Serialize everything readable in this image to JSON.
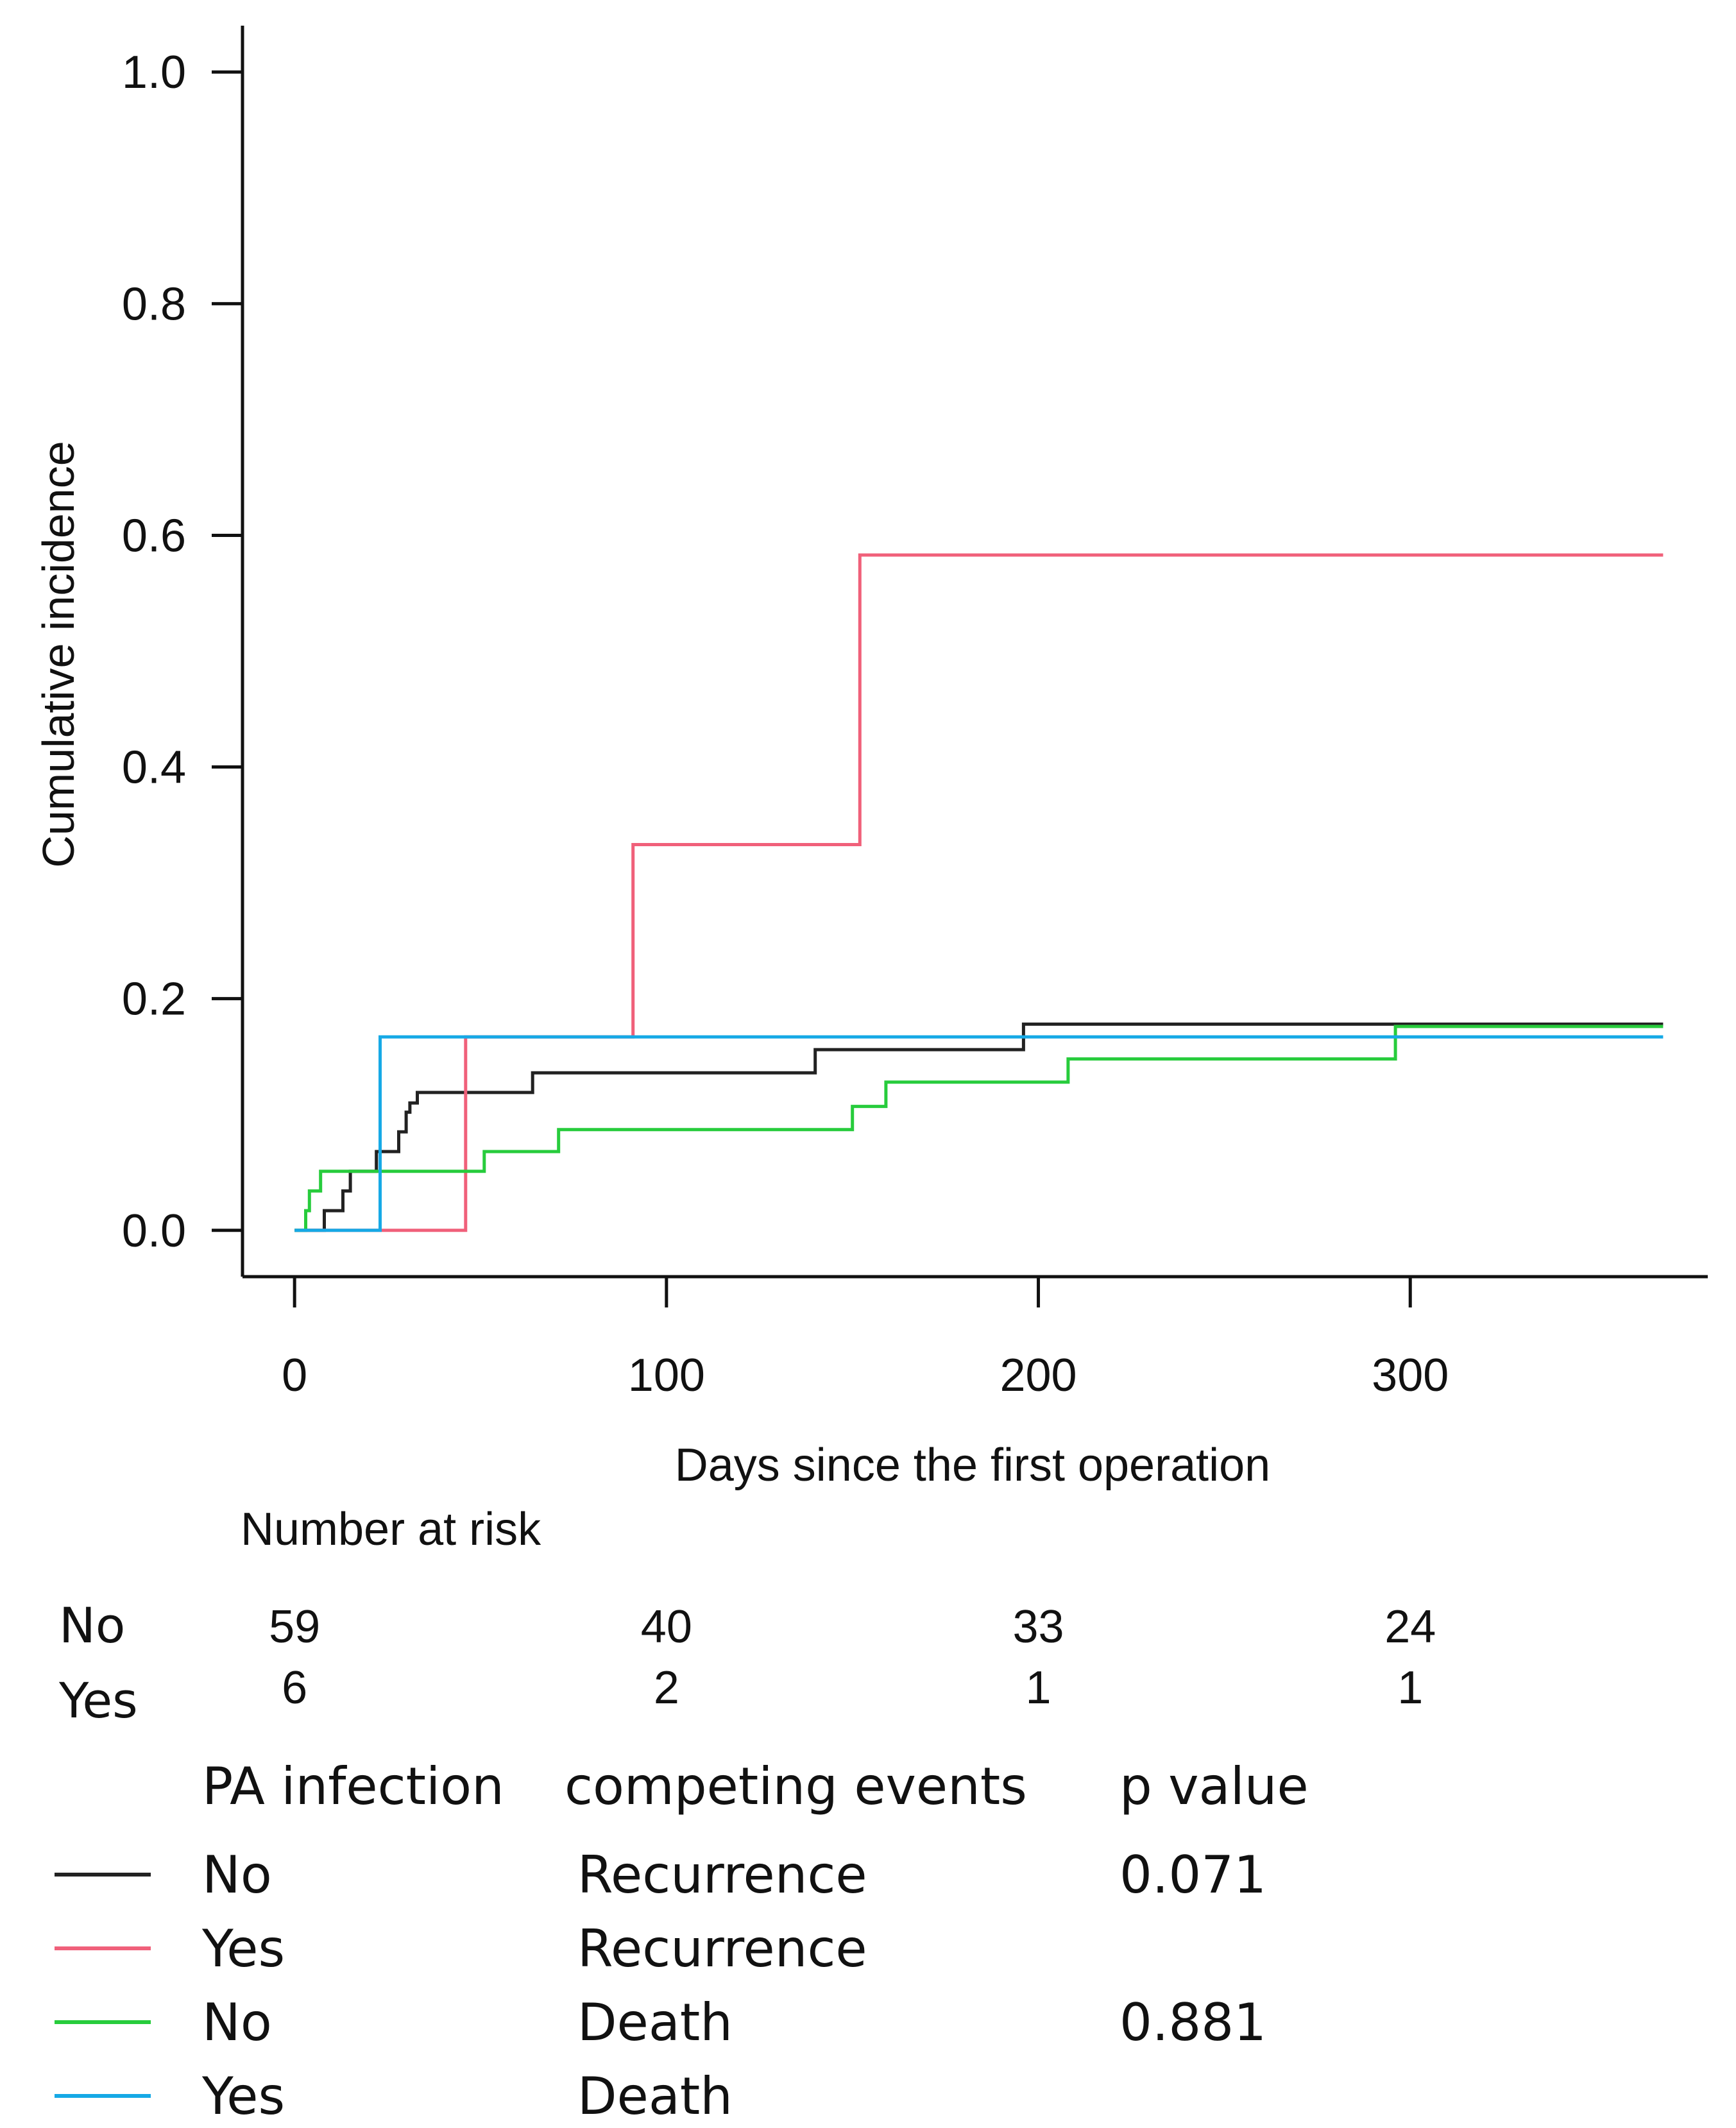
{
  "chart_data": {
    "type": "line",
    "step": true,
    "title": "",
    "xlabel": "Days since the first operation",
    "ylabel": "Cumulative incidence",
    "xlim": [
      -14,
      380
    ],
    "ylim": [
      -0.04,
      1.04
    ],
    "xticks": [
      0,
      100,
      200,
      300
    ],
    "xtick_labels": [
      "0",
      "100",
      "200",
      "300"
    ],
    "yticks": [
      0.0,
      0.2,
      0.4,
      0.6,
      0.8,
      1.0
    ],
    "ytick_labels": [
      "0.0",
      "0.2",
      "0.4",
      "0.6",
      "0.8",
      "1.0"
    ],
    "grid": false,
    "series": [
      {
        "name": "No - Recurrence",
        "pa_infection": "No",
        "event": "Recurrence",
        "color": "#222222",
        "x": [
          0,
          8,
          13,
          15,
          17,
          21,
          22,
          24,
          28,
          30,
          31,
          33,
          64,
          140,
          196,
          368
        ],
        "y": [
          0.0,
          0.017,
          0.034,
          0.051,
          0.051,
          0.051,
          0.068,
          0.068,
          0.085,
          0.102,
          0.11,
          0.119,
          0.136,
          0.156,
          0.178,
          0.178
        ]
      },
      {
        "name": "Yes - Recurrence",
        "pa_infection": "Yes",
        "event": "Recurrence",
        "color": "#f0607a",
        "x": [
          0,
          46,
          91,
          152,
          368
        ],
        "y": [
          0.0,
          0.167,
          0.333,
          0.583,
          0.583
        ]
      },
      {
        "name": "No - Death",
        "pa_infection": "No",
        "event": "Death",
        "color": "#27cc3c",
        "x": [
          0,
          3,
          4,
          5,
          7,
          51,
          71,
          150,
          159,
          208,
          296,
          368
        ],
        "y": [
          0.0,
          0.017,
          0.034,
          0.034,
          0.051,
          0.068,
          0.087,
          0.107,
          0.128,
          0.148,
          0.176,
          0.176
        ]
      },
      {
        "name": "Yes - Death",
        "pa_infection": "Yes",
        "event": "Death",
        "color": "#16a9e6",
        "x": [
          0,
          23,
          368
        ],
        "y": [
          0.0,
          0.167,
          0.167
        ]
      }
    ],
    "risk_table": {
      "title": "Number at risk",
      "times": [
        0,
        100,
        200,
        300
      ],
      "rows": [
        {
          "label": "No",
          "values": [
            "59",
            "40",
            "33",
            "24"
          ]
        },
        {
          "label": "Yes",
          "values": [
            "6",
            "2",
            "1",
            "1"
          ]
        }
      ]
    },
    "legend": {
      "headers": [
        "PA infection",
        "competing events",
        "p value"
      ],
      "rows": [
        {
          "pa": "No",
          "event": "Recurrence",
          "p": "0.071",
          "color": "#222222"
        },
        {
          "pa": "Yes",
          "event": "Recurrence",
          "p": "",
          "color": "#f0607a"
        },
        {
          "pa": "No",
          "event": "Death",
          "p": "0.881",
          "color": "#27cc3c"
        },
        {
          "pa": "Yes",
          "event": "Death",
          "p": "",
          "color": "#16a9e6"
        }
      ]
    }
  }
}
